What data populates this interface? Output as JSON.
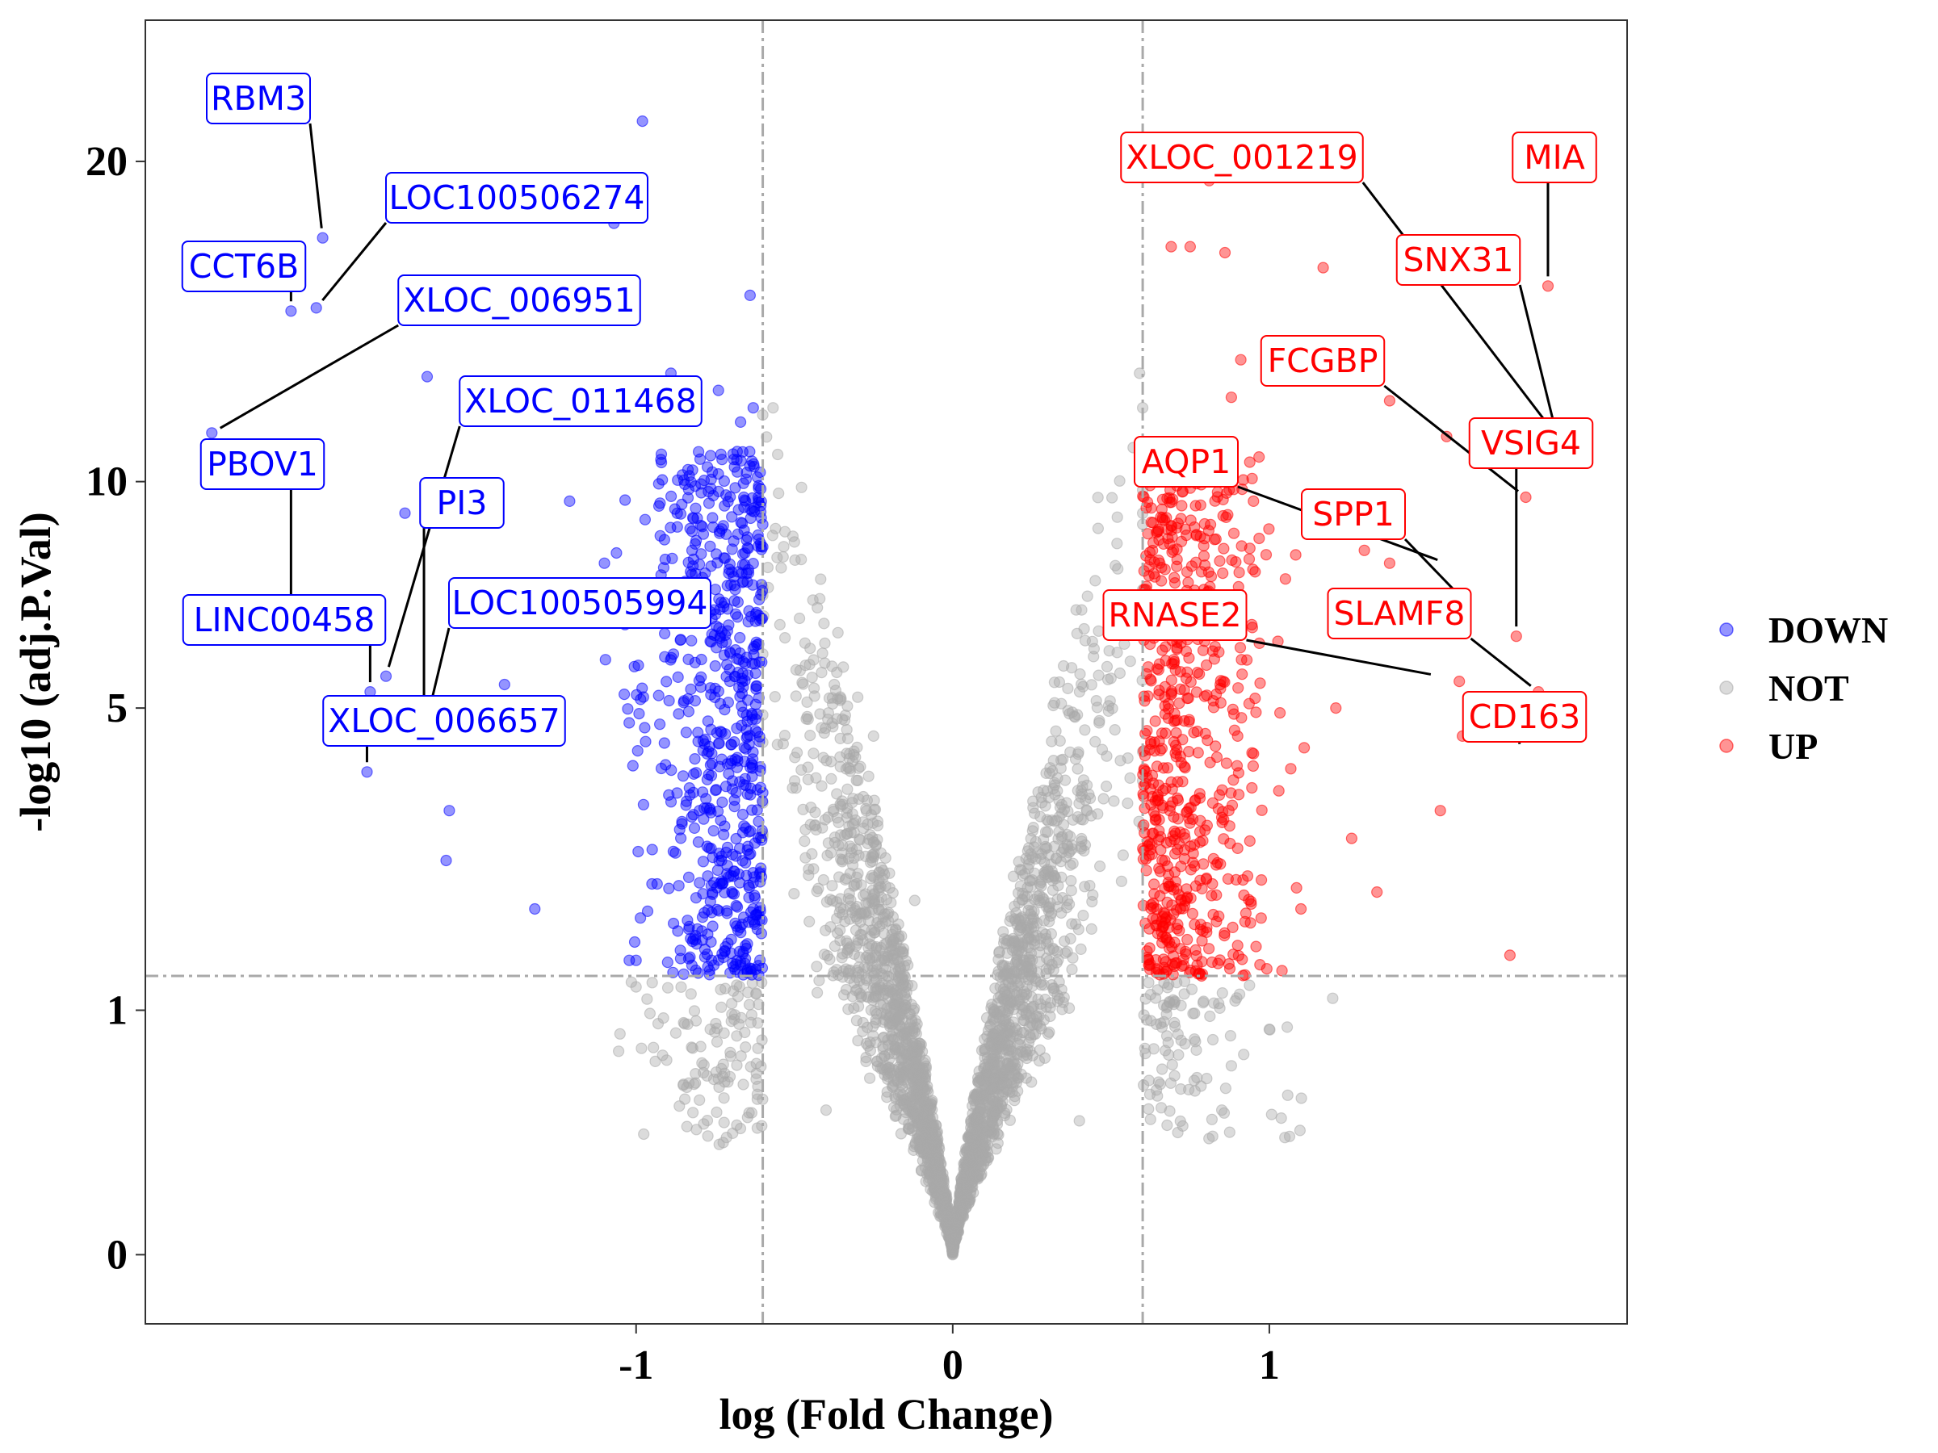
{
  "chart_data": {
    "type": "scatter",
    "title": "",
    "xlabel": "log (Fold Change)",
    "ylabel": "-log10 (adj.P.Val)",
    "x_ticks": [
      {
        "value": -1,
        "label": "-1"
      },
      {
        "value": 0,
        "label": "0"
      },
      {
        "value": 1,
        "label": "1"
      }
    ],
    "y_ticks": [
      {
        "value": 0,
        "label": "0"
      },
      {
        "value": 1,
        "label": "1"
      },
      {
        "value": 5,
        "label": "5"
      },
      {
        "value": 10,
        "label": "10"
      },
      {
        "value": 20,
        "label": "20"
      }
    ],
    "y_scale": "sqrt",
    "xlim": [
      -2.55,
      2.13
    ],
    "ylim": [
      -0.08,
      25.5
    ],
    "fc_cutoff": [
      -0.6,
      0.6
    ],
    "p_cutoff": 1.3,
    "grid": false,
    "legend_position": "right",
    "series": [
      {
        "name": "DOWN",
        "color": "#0000FF"
      },
      {
        "name": "NOT",
        "color": "#A9A9A9"
      },
      {
        "name": "UP",
        "color": "#FF0000"
      }
    ],
    "points": {
      "DOWN": [
        [
          -0.98,
          21.5
        ],
        [
          -1.54,
          18.3
        ],
        [
          -1.07,
          17.8
        ],
        [
          -0.64,
          15.4
        ],
        [
          -1.99,
          17.3
        ],
        [
          -2.09,
          14.9
        ],
        [
          -2.01,
          15.0
        ],
        [
          -0.89,
          13.0
        ],
        [
          -1.66,
          12.9
        ],
        [
          -2.34,
          11.3
        ],
        [
          -0.74,
          12.5
        ],
        [
          -0.63,
          12.0
        ],
        [
          -0.67,
          11.6
        ],
        [
          -1.73,
          9.2
        ],
        [
          -1.21,
          9.5
        ],
        [
          -0.92,
          10.5
        ],
        [
          -1.1,
          8.0
        ],
        [
          -2.09,
          6.5
        ],
        [
          -1.79,
          5.6
        ],
        [
          -1.84,
          5.3
        ],
        [
          -1.67,
          5.0
        ],
        [
          -1.85,
          3.9
        ],
        [
          -1.59,
          3.3
        ],
        [
          -1.6,
          2.6
        ],
        [
          -1.32,
          2.0
        ],
        [
          -1.0,
          1.45
        ],
        [
          -0.66,
          9.6
        ],
        [
          -0.8,
          7.4
        ],
        [
          -1.02,
          7.5
        ],
        [
          -0.62,
          6.9
        ],
        [
          -0.75,
          5.8
        ],
        [
          -0.85,
          5.1
        ],
        [
          -0.69,
          4.4
        ],
        [
          -1.01,
          4.0
        ],
        [
          -0.8,
          3.3
        ],
        [
          -0.73,
          2.6
        ],
        [
          -0.95,
          2.3
        ],
        [
          -0.63,
          2.0
        ],
        [
          -0.86,
          1.55
        ],
        [
          -0.65,
          1.35
        ]
      ],
      "NOT": [
        [
          -0.6,
          11.8
        ],
        [
          -0.55,
          9.7
        ],
        [
          -0.5,
          8.5
        ],
        [
          -0.42,
          7.2
        ],
        [
          -0.3,
          5.2
        ],
        [
          -0.25,
          4.5
        ],
        [
          -0.12,
          2.1
        ],
        [
          0,
          0
        ],
        [
          0.08,
          0.5
        ],
        [
          0.15,
          1.2
        ],
        [
          0.28,
          3.5
        ],
        [
          0.35,
          5.8
        ],
        [
          0.45,
          7.6
        ],
        [
          0.52,
          9.1
        ],
        [
          0.59,
          13.0
        ],
        [
          0.57,
          10.9
        ],
        [
          -1.0,
          1.2
        ],
        [
          -0.85,
          0.9
        ],
        [
          -0.62,
          0.55
        ],
        [
          0.7,
          0.9
        ],
        [
          1.0,
          0.85
        ],
        [
          1.2,
          1.1
        ],
        [
          0.85,
          0.35
        ],
        [
          -0.8,
          0.4
        ],
        [
          0.4,
          0.3
        ],
        [
          -0.4,
          0.35
        ]
      ],
      "UP": [
        [
          0.81,
          19.3
        ],
        [
          0.86,
          16.8
        ],
        [
          1.17,
          16.3
        ],
        [
          0.69,
          17.0
        ],
        [
          0.75,
          17.0
        ],
        [
          1.88,
          15.7
        ],
        [
          0.91,
          13.4
        ],
        [
          0.88,
          12.3
        ],
        [
          1.38,
          12.2
        ],
        [
          1.56,
          11.2
        ],
        [
          1.9,
          11.3
        ],
        [
          1.81,
          9.6
        ],
        [
          1.92,
          10.8
        ],
        [
          0.79,
          10.5
        ],
        [
          0.95,
          9.5
        ],
        [
          1.3,
          8.3
        ],
        [
          1.38,
          8.0
        ],
        [
          1.61,
          7.2
        ],
        [
          1.78,
          6.4
        ],
        [
          1.6,
          5.5
        ],
        [
          1.85,
          5.3
        ],
        [
          0.74,
          7.8
        ],
        [
          0.8,
          6.5
        ],
        [
          0.67,
          5.2
        ],
        [
          0.9,
          4.5
        ],
        [
          1.03,
          3.6
        ],
        [
          0.7,
          3.0
        ],
        [
          1.26,
          2.9
        ],
        [
          0.82,
          2.3
        ],
        [
          1.1,
          2.0
        ],
        [
          1.76,
          1.5
        ],
        [
          0.9,
          1.6
        ],
        [
          0.65,
          1.35
        ],
        [
          1.04,
          1.35
        ],
        [
          1.61,
          4.5
        ],
        [
          1.54,
          3.3
        ],
        [
          1.21,
          5.0
        ],
        [
          1.11,
          4.3
        ],
        [
          0.95,
          4.2
        ],
        [
          1.34,
          2.2
        ]
      ]
    },
    "annotations": [
      {
        "label": "RBM3",
        "group": "DOWN",
        "x": -1.99,
        "y": 17.3
      },
      {
        "label": "LOC100506274",
        "group": "DOWN",
        "x": -2.01,
        "y": 15.0
      },
      {
        "label": "CCT6B",
        "group": "DOWN",
        "x": -2.09,
        "y": 14.9
      },
      {
        "label": "XLOC_006951",
        "group": "DOWN",
        "x": -2.34,
        "y": 11.3
      },
      {
        "label": "XLOC_011468",
        "group": "DOWN",
        "x": -1.79,
        "y": 5.6
      },
      {
        "label": "PBOV1",
        "group": "DOWN",
        "x": -2.09,
        "y": 6.5
      },
      {
        "label": "PI3",
        "group": "DOWN",
        "x": -1.67,
        "y": 5.0
      },
      {
        "label": "LINC00458",
        "group": "DOWN",
        "x": -1.84,
        "y": 5.3
      },
      {
        "label": "LOC100505994",
        "group": "DOWN",
        "x": -1.66,
        "y": 4.8
      },
      {
        "label": "XLOC_006657",
        "group": "DOWN",
        "x": -1.85,
        "y": 3.9
      },
      {
        "label": "XLOC_001219",
        "group": "UP",
        "x": 1.9,
        "y": 11.3
      },
      {
        "label": "MIA",
        "group": "UP",
        "x": 1.88,
        "y": 15.7
      },
      {
        "label": "SNX31",
        "group": "UP",
        "x": 1.92,
        "y": 10.8
      },
      {
        "label": "FCGBP",
        "group": "UP",
        "x": 1.81,
        "y": 9.6
      },
      {
        "label": "AQP1",
        "group": "UP",
        "x": 1.56,
        "y": 8.0
      },
      {
        "label": "VSIG4",
        "group": "UP",
        "x": 1.78,
        "y": 6.4
      },
      {
        "label": "SPP1",
        "group": "UP",
        "x": 1.61,
        "y": 7.2
      },
      {
        "label": "RNASE2",
        "group": "UP",
        "x": 1.54,
        "y": 5.6
      },
      {
        "label": "SLAMF8",
        "group": "UP",
        "x": 1.85,
        "y": 5.3
      },
      {
        "label": "CD163",
        "group": "UP",
        "x": 1.79,
        "y": 4.2
      }
    ]
  }
}
